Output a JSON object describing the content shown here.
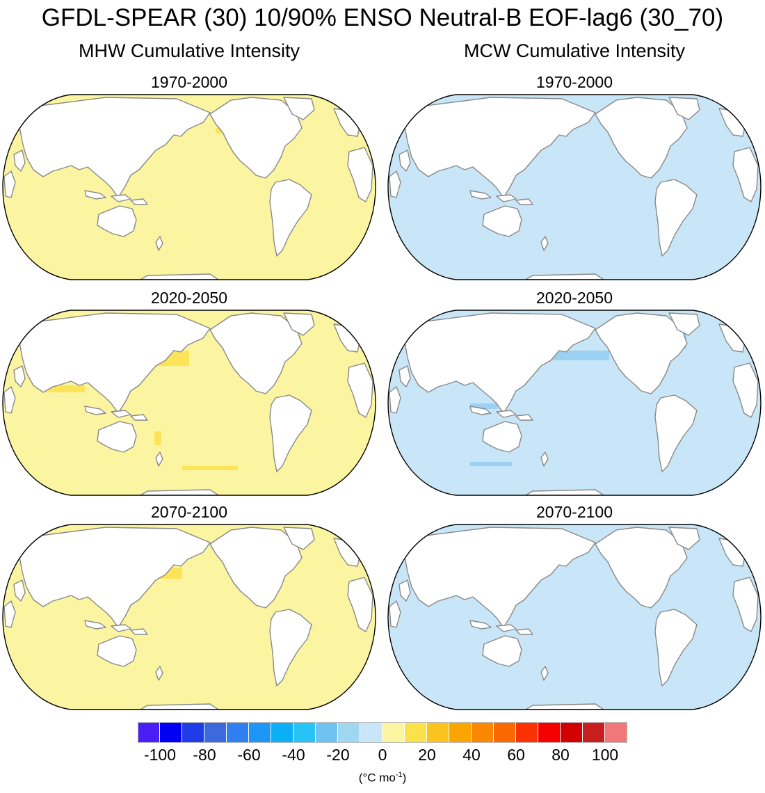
{
  "title": "GFDL-SPEAR (30) 10/90% ENSO Neutral-B EOF-lag6 (30_70)",
  "columns": [
    {
      "title": "MHW Cumulative Intensity",
      "ocean_color": "#fbf5a2",
      "hot_color": "#fbe14c"
    },
    {
      "title": "MCW Cumulative Intensity",
      "ocean_color": "#c8e6f7",
      "hot_color": "#94cdf2"
    }
  ],
  "panels": [
    {
      "column": 0,
      "row": 0,
      "label": "1970-2000"
    },
    {
      "column": 0,
      "row": 1,
      "label": "2020-2050"
    },
    {
      "column": 0,
      "row": 2,
      "label": "2070-2100"
    },
    {
      "column": 1,
      "row": 0,
      "label": "1970-2000"
    },
    {
      "column": 1,
      "row": 1,
      "label": "2020-2050"
    },
    {
      "column": 1,
      "row": 2,
      "label": "2070-2100"
    }
  ],
  "colorbar": {
    "colors": [
      "#4a1ff5",
      "#0000f5",
      "#1f3ce6",
      "#3c69dc",
      "#2f7ff0",
      "#1e96f5",
      "#0aaff5",
      "#28c3f5",
      "#6ec3f0",
      "#a0d7f0",
      "#c8e6f7",
      "#fbf5a2",
      "#fbe14c",
      "#fbc31e",
      "#fba500",
      "#fb8700",
      "#fa6900",
      "#fa3200",
      "#f50000",
      "#d20000",
      "#c81e1e",
      "#f07878"
    ],
    "labels": [
      "-100",
      "-80",
      "-60",
      "-40",
      "-20",
      "0",
      "20",
      "40",
      "60",
      "80",
      "100"
    ],
    "units_base": "(°C mo",
    "units_sup": "-1",
    "units_end": ")"
  }
}
